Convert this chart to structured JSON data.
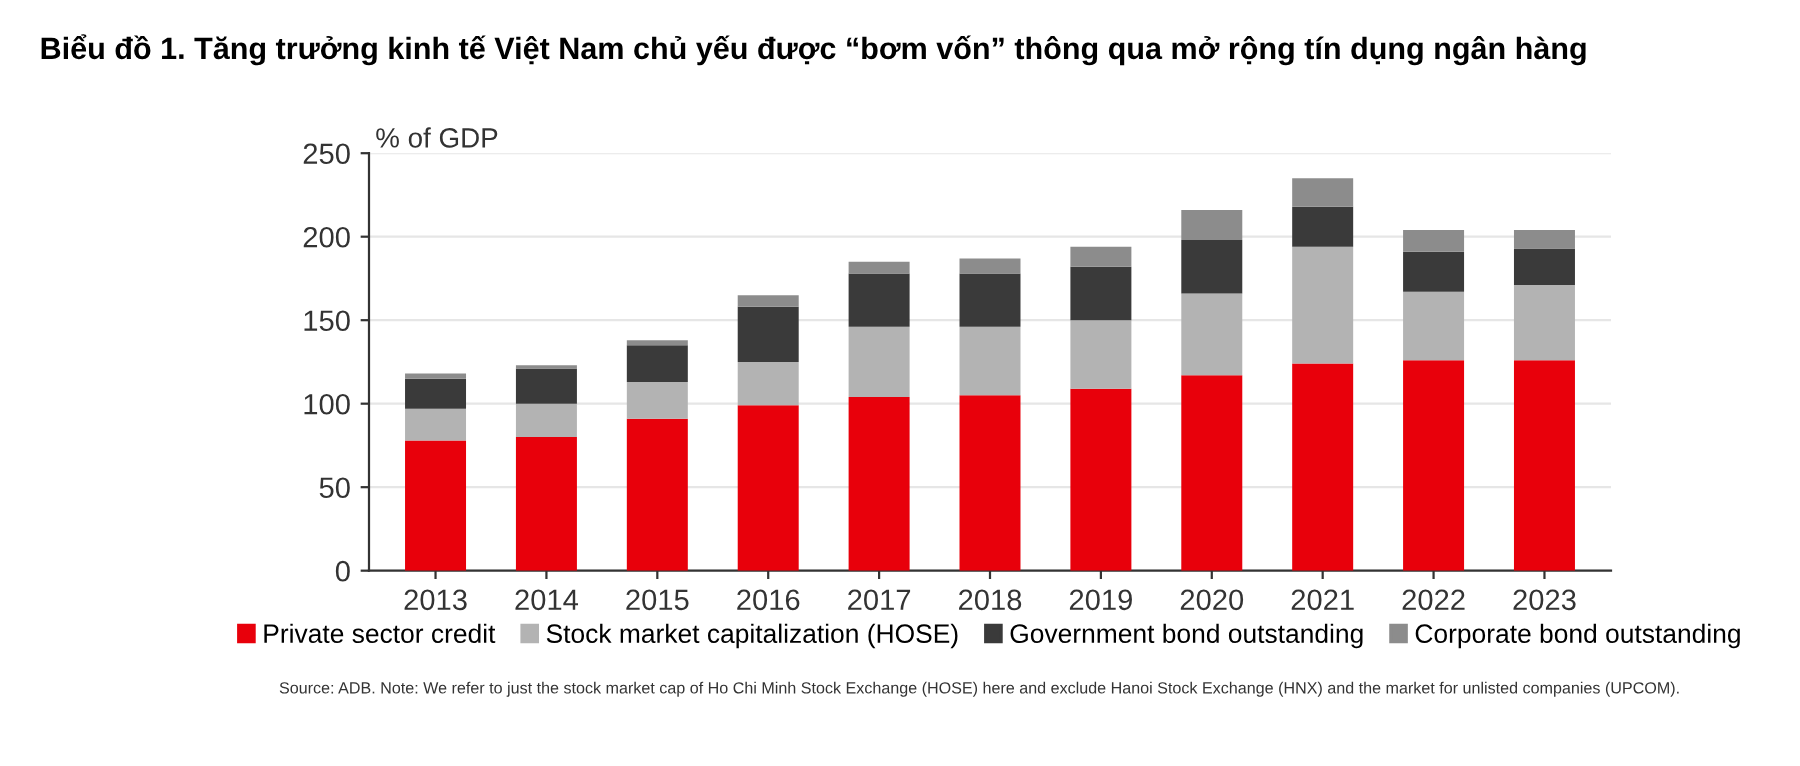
{
  "chart_data": {
    "type": "bar",
    "stacked": true,
    "title": "Biểu đồ 1. Tăng trưởng kinh tế Việt Nam chủ yếu được “bơm vốn” thông qua mở rộng tín dụng ngân hàng",
    "ylabel": "% of GDP",
    "categories": [
      "2013",
      "2014",
      "2015",
      "2016",
      "2017",
      "2018",
      "2019",
      "2020",
      "2021",
      "2022",
      "2023"
    ],
    "series": [
      {
        "name": "Private sector credit",
        "color": "#e8000b",
        "values": [
          78,
          80,
          91,
          99,
          104,
          105,
          109,
          117,
          124,
          126,
          126
        ]
      },
      {
        "name": "Stock market capitalization (HOSE)",
        "color": "#b3b3b3",
        "values": [
          19,
          20,
          22,
          26,
          42,
          41,
          41,
          49,
          70,
          41,
          45
        ]
      },
      {
        "name": "Government bond outstanding",
        "color": "#3a3a3a",
        "values": [
          18,
          21,
          22,
          33,
          32,
          32,
          32,
          32,
          24,
          24,
          22
        ]
      },
      {
        "name": "Corporate bond outstanding",
        "color": "#8c8c8c",
        "values": [
          3,
          2,
          3,
          7,
          7,
          9,
          12,
          18,
          17,
          13,
          11
        ]
      }
    ],
    "ylim": [
      0,
      250
    ],
    "yticks": [
      0,
      50,
      100,
      150,
      200,
      250
    ],
    "grid": "y",
    "legend": "bottom",
    "annotations": [
      "Source: ADB. Note: We refer to just the stock market cap of Ho Chi Minh Stock Exchange (HOSE) here and exclude Hanoi Stock Exchange (HNX) and the market for unlisted companies (UPCOM)."
    ]
  }
}
